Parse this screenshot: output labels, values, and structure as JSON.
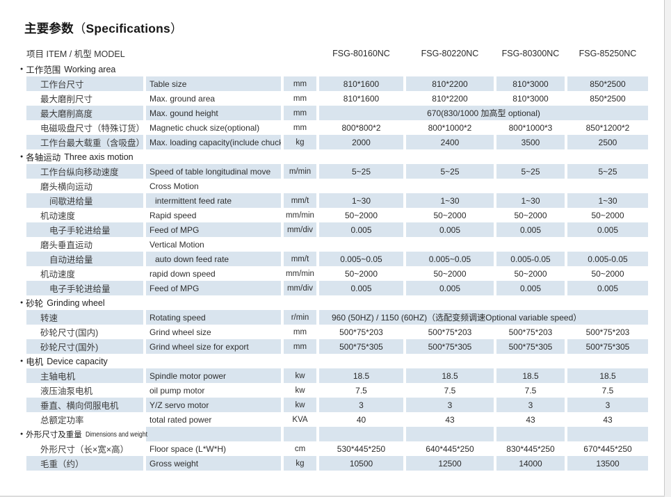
{
  "colors": {
    "row_shade": "#d9e4ee"
  },
  "title": {
    "zh": "主要参数",
    "open": "（",
    "en": "Specifications",
    "close": "）"
  },
  "table": {
    "header_label": "项目 ITEM / 机型 MODEL",
    "models": [
      "FSG-80160NC",
      "FSG-80220NC",
      "FSG-80300NC",
      "FSG-85250NC"
    ],
    "sections": [
      {
        "label_zh": "工作范围",
        "label_en": "Working area",
        "header_shaded": false,
        "rows": [
          {
            "zh": "工作台尺寸",
            "en": "Table size",
            "unit": "mm",
            "values": [
              "810*1600",
              "810*2200",
              "810*3000",
              "850*2500"
            ],
            "shaded": true
          },
          {
            "zh": "最大磨削尺寸",
            "en": "Max. ground area",
            "unit": "mm",
            "values": [
              "810*1600",
              "810*2200",
              "810*3000",
              "850*2500"
            ],
            "shaded": false
          },
          {
            "zh": "最大磨削高度",
            "en": "Max. gound height",
            "unit": "mm",
            "span": "670(830/1000 加高型  optional)",
            "span_align": "center",
            "shaded": true
          },
          {
            "zh": "电磁吸盘尺寸（特殊订货）",
            "en": "Magnetic chuck size(optional)",
            "unit": "mm",
            "values": [
              "800*800*2",
              "800*1000*2",
              "800*1000*3",
              "850*1200*2"
            ],
            "shaded": false
          },
          {
            "zh": "工作台最大载重（含吸盘）",
            "en": "Max. loading capacity(include chuck)",
            "unit": "kg",
            "values": [
              "2000",
              "2400",
              "3500",
              "2500"
            ],
            "shaded": true
          }
        ]
      },
      {
        "label_zh": "各轴运动",
        "label_en": "Three axis motion",
        "header_shaded": false,
        "rows": [
          {
            "zh": "工作台纵向移动速度",
            "en": "Speed of table longitudinal move",
            "unit": "m/min",
            "values": [
              "5~25",
              "5~25",
              "5~25",
              "5~25"
            ],
            "shaded": true
          },
          {
            "zh": "磨头横向运动",
            "en": "Cross Motion",
            "unit": "",
            "values": [
              "",
              "",
              "",
              ""
            ],
            "shaded": false
          },
          {
            "zh": "间歇进给量",
            "en": "intermittent feed rate",
            "unit": "mm/t",
            "values": [
              "1~30",
              "1~30",
              "1~30",
              "1~30"
            ],
            "shaded": true,
            "ind_zh": true,
            "ind_en": true
          },
          {
            "zh": "机动速度",
            "en": "Rapid speed",
            "unit": "mm/min",
            "values": [
              "50~2000",
              "50~2000",
              "50~2000",
              "50~2000"
            ],
            "shaded": false
          },
          {
            "zh": "电子手轮进给量",
            "en": "Feed of MPG",
            "unit": "mm/div",
            "values": [
              "0.005",
              "0.005",
              "0.005",
              "0.005"
            ],
            "shaded": true,
            "ind_zh": true
          },
          {
            "zh": "磨头垂直运动",
            "en": "Vertical Motion",
            "unit": "",
            "values": [
              "",
              "",
              "",
              ""
            ],
            "shaded": false
          },
          {
            "zh": "自动进给量",
            "en": "auto down feed rate",
            "unit": "mm/t",
            "values": [
              "0.005~0.05",
              "0.005~0.05",
              "0.005-0.05",
              "0.005-0.05"
            ],
            "shaded": true,
            "ind_zh": true,
            "ind_en": true
          },
          {
            "zh": "机动速度",
            "en": "rapid down speed",
            "unit": "mm/min",
            "values": [
              "50~2000",
              "50~2000",
              "50~2000",
              "50~2000"
            ],
            "shaded": false
          },
          {
            "zh": "电子手轮进给量",
            "en": "Feed of MPG",
            "unit": "mm/div",
            "values": [
              "0.005",
              "0.005",
              "0.005",
              "0.005"
            ],
            "shaded": true,
            "ind_zh": true
          }
        ]
      },
      {
        "label_zh": "砂轮",
        "label_en": "Grinding wheel",
        "header_shaded": false,
        "rows": [
          {
            "zh": "转速",
            "en": "Rotating speed",
            "unit": "r/min",
            "span": "960 (50HZ) / 1150 (60HZ)（选配变频调速Optional  variable speed）",
            "span_align": "left",
            "shaded": true
          },
          {
            "zh": "砂轮尺寸(国内)",
            "en": "Grind wheel size",
            "unit": "mm",
            "values": [
              "500*75*203",
              "500*75*203",
              "500*75*203",
              "500*75*203"
            ],
            "shaded": false
          },
          {
            "zh": "砂轮尺寸(国外)",
            "en": "Grind wheel size for export",
            "unit": "mm",
            "values": [
              "500*75*305",
              "500*75*305",
              "500*75*305",
              "500*75*305"
            ],
            "shaded": true
          }
        ]
      },
      {
        "label_zh": "电机",
        "label_en": "Device capacity",
        "header_shaded": false,
        "rows": [
          {
            "zh": "主轴电机",
            "en": "Spindle motor power",
            "unit": "kw",
            "values": [
              "18.5",
              "18.5",
              "18.5",
              "18.5"
            ],
            "shaded": true
          },
          {
            "zh": "液压油泵电机",
            "en": "oil pump motor",
            "unit": "kw",
            "values": [
              "7.5",
              "7.5",
              "7.5",
              "7.5"
            ],
            "shaded": false
          },
          {
            "zh": "垂直、横向伺服电机",
            "en": "Y/Z servo motor",
            "unit": "kw",
            "values": [
              "3",
              "3",
              "3",
              "3"
            ],
            "shaded": true
          },
          {
            "zh": "总额定功率",
            "en": "total rated power",
            "unit": "KVA",
            "values": [
              "40",
              "43",
              "43",
              "43"
            ],
            "shaded": false
          }
        ]
      },
      {
        "label_zh": "外形尺寸及重量",
        "label_en": "Dimensions and weight",
        "header_shaded": true,
        "rows": [
          {
            "zh": "外形尺寸（长×宽×高）",
            "en": "Floor space (L*W*H)",
            "unit": "cm",
            "values": [
              "530*445*250",
              "640*445*250",
              "830*445*250",
              "670*445*250"
            ],
            "shaded": false
          },
          {
            "zh": "毛重（约）",
            "en": "Gross weight",
            "unit": "kg",
            "values": [
              "10500",
              "12500",
              "14000",
              "13500"
            ],
            "shaded": true
          }
        ]
      }
    ]
  }
}
